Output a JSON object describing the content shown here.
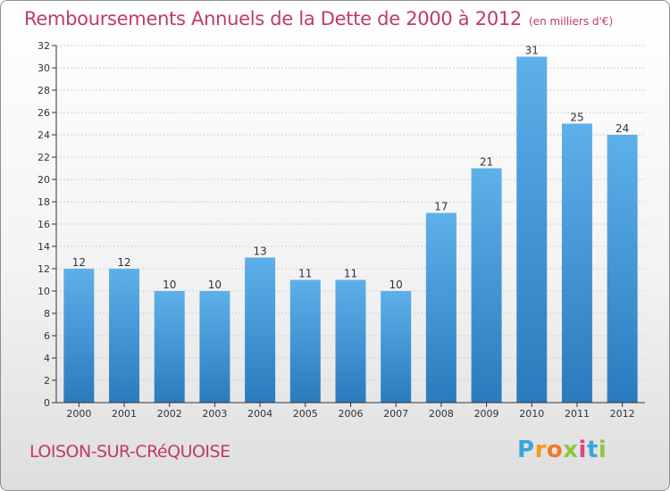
{
  "title": "Remboursements Annuels de la Dette de 2000 à 2012",
  "unit_note": "(en milliers d'€)",
  "commune": "LOISON-SUR-CRéQUOISE",
  "logo": {
    "text": "Proxiti",
    "colors": [
      "#3aa5dc",
      "#f39c1a",
      "#ef7a2a",
      "#8cc63f",
      "#e0437e",
      "#3aa5dc",
      "#8cc63f"
    ]
  },
  "colors": {
    "bar_top": "#5eb0ea",
    "bar_bottom": "#2a7bbd",
    "text_accent": "#c0396f",
    "axis": "#333333",
    "grid": "#cfcfcf"
  },
  "chart_data": {
    "type": "bar",
    "categories": [
      "2000",
      "2001",
      "2002",
      "2003",
      "2004",
      "2005",
      "2006",
      "2007",
      "2008",
      "2009",
      "2010",
      "2011",
      "2012"
    ],
    "values": [
      12,
      12,
      10,
      10,
      13,
      11,
      11,
      10,
      17,
      21,
      31,
      25,
      24
    ],
    "value_labels": [
      "12",
      "12",
      "10",
      "10",
      "13",
      "11",
      "11",
      "10",
      "17",
      "21",
      "31",
      "25",
      "24"
    ],
    "title": "Remboursements Annuels de la Dette de 2000 à 2012",
    "xlabel": "",
    "ylabel": "",
    "ylim": [
      0,
      32
    ],
    "yticks": [
      0,
      2,
      4,
      6,
      8,
      10,
      12,
      14,
      16,
      18,
      20,
      22,
      24,
      26,
      28,
      30,
      32
    ],
    "ytick_labels": [
      "0",
      "2",
      "4",
      "6",
      "8",
      "10",
      "12",
      "14",
      "16",
      "18",
      "20",
      "22",
      "24",
      "26",
      "28",
      "30",
      "32"
    ],
    "grid": true,
    "legend": false
  }
}
